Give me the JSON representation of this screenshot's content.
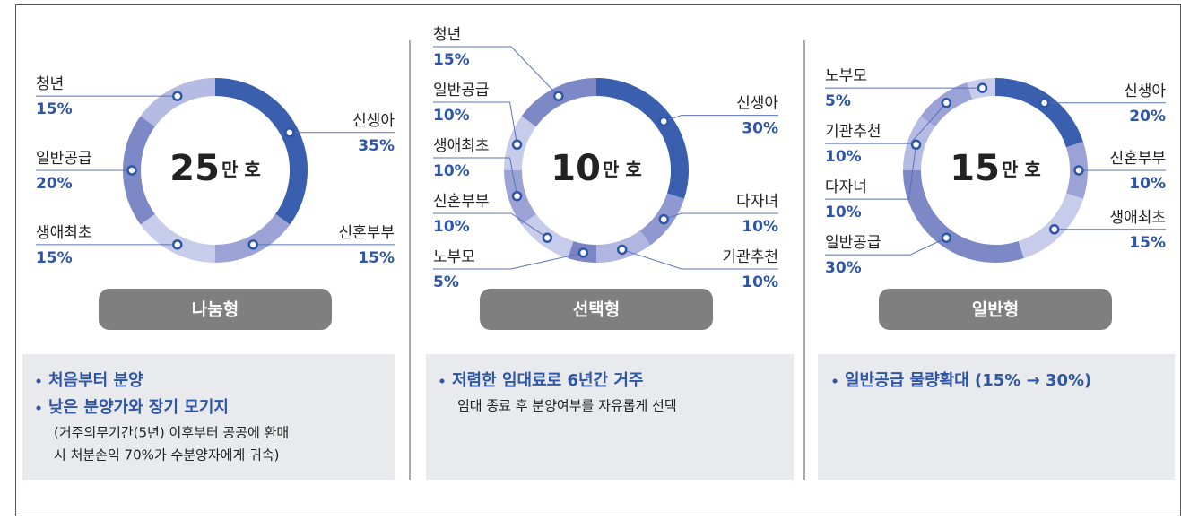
{
  "chart_data": [
    {
      "type": "donut",
      "center_value": 25,
      "center_unit": "만 호",
      "title": "나눔형",
      "categories": [
        "신생아",
        "신혼부부",
        "생애최초",
        "일반공급",
        "청년"
      ],
      "values": [
        35,
        15,
        15,
        20,
        15
      ],
      "value_labels": [
        "35%",
        "15%",
        "15%",
        "20%",
        "15%"
      ],
      "colors": [
        "#3a5fae",
        "#9ba3d6",
        "#c8cceb",
        "#7d88c6",
        "#b5bbe2"
      ],
      "notes": {
        "bullets": [
          "처음부터 분양",
          "낮은 분양가와 장기 모기지"
        ],
        "details": [
          "(거주의무기간(5년) 이후부터 공공에 환매",
          "시 처분손익 70%가 수분양자에게 귀속)"
        ]
      }
    },
    {
      "type": "donut",
      "center_value": 10,
      "center_unit": "만 호",
      "title": "선택형",
      "categories": [
        "신생아",
        "다자녀",
        "기관추천",
        "노부모",
        "신혼부부",
        "생애최초",
        "일반공급",
        "청년"
      ],
      "values": [
        30,
        10,
        10,
        5,
        10,
        10,
        10,
        15
      ],
      "value_labels": [
        "30%",
        "10%",
        "10%",
        "5%",
        "10%",
        "10%",
        "10%",
        "15%"
      ],
      "colors": [
        "#3a5fae",
        "#8f98d0",
        "#b0b6e0",
        "#7c86c6",
        "#c8cceb",
        "#9ba3d6",
        "#c8cceb",
        "#7d88c6"
      ],
      "notes": {
        "bullets": [
          "저렴한 임대료로 6년간 거주"
        ],
        "details": [
          "임대 종료 후 분양여부를 자유롭게 선택"
        ]
      }
    },
    {
      "type": "donut",
      "center_value": 15,
      "center_unit": "만 호",
      "title": "일반형",
      "categories": [
        "신생아",
        "신혼부부",
        "생애최초",
        "일반공급",
        "다자녀",
        "기관추천",
        "노부모"
      ],
      "values": [
        20,
        10,
        15,
        30,
        10,
        10,
        5
      ],
      "value_labels": [
        "20%",
        "10%",
        "15%",
        "30%",
        "10%",
        "10%",
        "5%"
      ],
      "colors": [
        "#3a5fae",
        "#9ba3d6",
        "#c8cceb",
        "#7d88c6",
        "#b5bbe2",
        "#9ba3d6",
        "#c8cceb"
      ],
      "notes": {
        "bullets": [
          "일반공급 물량확대 (15% → 30%)"
        ],
        "details": []
      }
    }
  ]
}
